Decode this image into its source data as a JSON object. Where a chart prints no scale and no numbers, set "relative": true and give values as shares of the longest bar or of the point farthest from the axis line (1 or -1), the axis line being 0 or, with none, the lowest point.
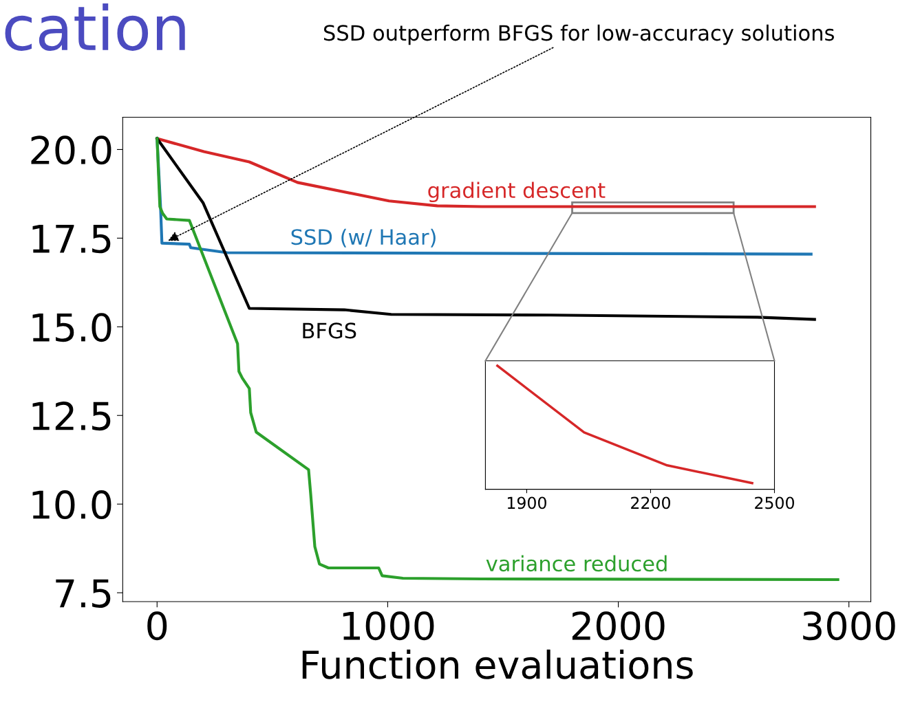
{
  "chart_data": [
    {
      "type": "line",
      "title": "cation",
      "xlabel": "Function evaluations",
      "xlim": [
        -149,
        3095
      ],
      "xticks": [
        0,
        1000,
        2000,
        3000
      ],
      "ylim": [
        7.25,
        20.91
      ],
      "yticks": [
        {
          "value": 7.5,
          "label": "7.5"
        },
        {
          "value": 10,
          "label": "10.0"
        },
        {
          "value": 12.5,
          "label": "12.5"
        },
        {
          "value": 15,
          "label": "15.0"
        },
        {
          "value": 17.5,
          "label": "17.5"
        },
        {
          "value": 20,
          "label": "20.0"
        }
      ],
      "grid": false,
      "marker": "none",
      "line_style": "solid",
      "annotations": [
        {
          "text": "SSD outperform BFGS for low-accuracy solutions",
          "x": 40,
          "y": 17.4
        }
      ],
      "series": [
        {
          "name": "gradient descent",
          "color": "#d62728",
          "x": [
            0,
            203,
            400,
            609,
            1006,
            1215,
            1409,
            2851
          ],
          "values": [
            20.31,
            19.94,
            19.65,
            19.07,
            18.55,
            18.41,
            18.39,
            18.39
          ]
        },
        {
          "name": "SSD (w/ Haar)",
          "color": "#1f77b4",
          "x": [
            0,
            15,
            21,
            140,
            146,
            304,
            2836
          ],
          "values": [
            20.31,
            18.39,
            17.36,
            17.33,
            17.23,
            17.09,
            17.05
          ]
        },
        {
          "name": "BFGS",
          "color": "#000000",
          "x": [
            0,
            200,
            400,
            812,
            1015,
            1707,
            2603,
            2851
          ],
          "values": [
            20.31,
            18.49,
            15.52,
            15.48,
            15.35,
            15.33,
            15.27,
            15.21
          ]
        },
        {
          "name": "variance reduced",
          "color": "#2ca02c",
          "x": [
            0,
            12,
            24,
            42,
            140,
            349,
            355,
            370,
            400,
            406,
            430,
            657,
            666,
            684,
            704,
            743,
            961,
            976,
            1066,
            1409,
            2952
          ],
          "values": [
            20.31,
            18.39,
            18.2,
            18.04,
            18.0,
            14.52,
            13.74,
            13.55,
            13.26,
            12.58,
            12.03,
            10.97,
            10.29,
            8.8,
            8.31,
            8.2,
            8.2,
            7.98,
            7.91,
            7.89,
            7.87
          ]
        }
      ]
    },
    {
      "type": "line",
      "relative": true,
      "xlim": [
        1800,
        2500
      ],
      "xticks": [
        1900,
        2200,
        2500
      ],
      "tick_labels": "x",
      "grid": false,
      "marker": "none",
      "line_style": "solid",
      "series": [
        {
          "color": "#d62728",
          "x": [
            1829,
            2039,
            2240,
            2446
          ],
          "values": [
            1,
            0.461,
            0.194,
            0.05
          ]
        }
      ]
    }
  ]
}
